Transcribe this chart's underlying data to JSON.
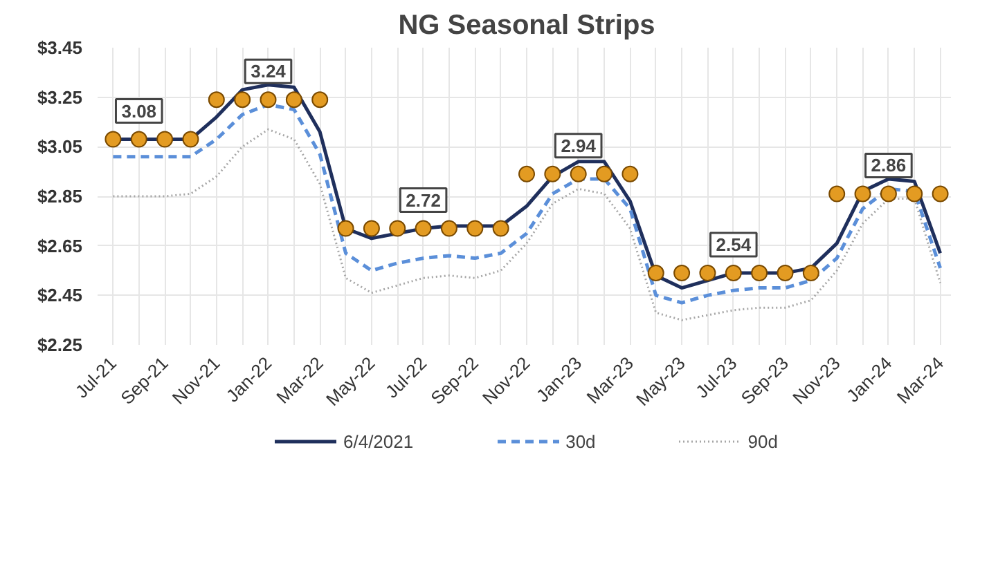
{
  "chart_data": {
    "type": "line",
    "title": "NG Seasonal Strips",
    "categories": [
      "Jul-21",
      null,
      "Sep-21",
      null,
      "Nov-21",
      null,
      "Jan-22",
      null,
      "Mar-22",
      null,
      "May-22",
      null,
      "Jul-22",
      null,
      "Sep-22",
      null,
      "Nov-22",
      null,
      "Jan-23",
      null,
      "Mar-23",
      null,
      "May-23",
      null,
      "Jul-23",
      null,
      "Sep-23",
      null,
      "Nov-23",
      null,
      "Jan-24",
      null,
      "Mar-24"
    ],
    "series": [
      {
        "name": "6/4/2021",
        "color": "#1f2f5c",
        "line_style": "solid",
        "values": [
          3.08,
          3.08,
          3.08,
          3.08,
          3.17,
          3.28,
          3.3,
          3.29,
          3.11,
          2.72,
          2.68,
          2.7,
          2.72,
          2.73,
          2.73,
          2.73,
          2.81,
          2.93,
          2.99,
          2.99,
          2.83,
          2.53,
          2.48,
          2.51,
          2.54,
          2.54,
          2.54,
          2.56,
          2.66,
          2.87,
          2.92,
          2.91,
          2.62
        ]
      },
      {
        "name": "30d",
        "color": "#5b8fd9",
        "line_style": "dashed",
        "values": [
          3.01,
          3.01,
          3.01,
          3.01,
          3.08,
          3.18,
          3.22,
          3.2,
          3.02,
          2.62,
          2.55,
          2.58,
          2.6,
          2.61,
          2.6,
          2.62,
          2.7,
          2.86,
          2.92,
          2.92,
          2.8,
          2.45,
          2.42,
          2.45,
          2.47,
          2.48,
          2.48,
          2.51,
          2.6,
          2.8,
          2.88,
          2.87,
          2.56
        ]
      },
      {
        "name": "90d",
        "color": "#a6a6a6",
        "line_style": "dotted",
        "values": [
          2.85,
          2.85,
          2.85,
          2.86,
          2.93,
          3.05,
          3.12,
          3.08,
          2.9,
          2.52,
          2.46,
          2.49,
          2.52,
          2.53,
          2.52,
          2.55,
          2.66,
          2.82,
          2.88,
          2.86,
          2.72,
          2.38,
          2.35,
          2.37,
          2.39,
          2.4,
          2.4,
          2.43,
          2.55,
          2.74,
          2.84,
          2.84,
          2.5
        ]
      },
      {
        "type": "scatter",
        "color": "#e39b22",
        "marker": "circle",
        "values": [
          3.08,
          3.08,
          3.08,
          3.08,
          3.24,
          3.24,
          3.24,
          3.24,
          3.24,
          2.72,
          2.72,
          2.72,
          2.72,
          2.72,
          2.72,
          2.72,
          2.94,
          2.94,
          2.94,
          2.94,
          2.94,
          2.54,
          2.54,
          2.54,
          2.54,
          2.54,
          2.54,
          2.54,
          2.86,
          2.86,
          2.86,
          2.86,
          2.86
        ],
        "value_labels": [
          null,
          "3.08",
          null,
          null,
          null,
          null,
          "3.24",
          null,
          null,
          null,
          null,
          null,
          "2.72",
          null,
          null,
          null,
          null,
          null,
          "2.94",
          null,
          null,
          null,
          null,
          null,
          "2.54",
          null,
          null,
          null,
          null,
          null,
          "2.86",
          null,
          null
        ]
      }
    ],
    "ylim": [
      2.25,
      3.45
    ],
    "yticks": [
      {
        "value": 2.25,
        "label": "$2.25"
      },
      {
        "value": 2.45,
        "label": "$2.45"
      },
      {
        "value": 2.65,
        "label": "$2.65"
      },
      {
        "value": 2.85,
        "label": "$2.85"
      },
      {
        "value": 3.05,
        "label": "$3.05"
      },
      {
        "value": 3.25,
        "label": "$3.25"
      },
      {
        "value": 3.45,
        "label": "$3.45"
      }
    ],
    "grid": true,
    "legend": "bottom"
  }
}
